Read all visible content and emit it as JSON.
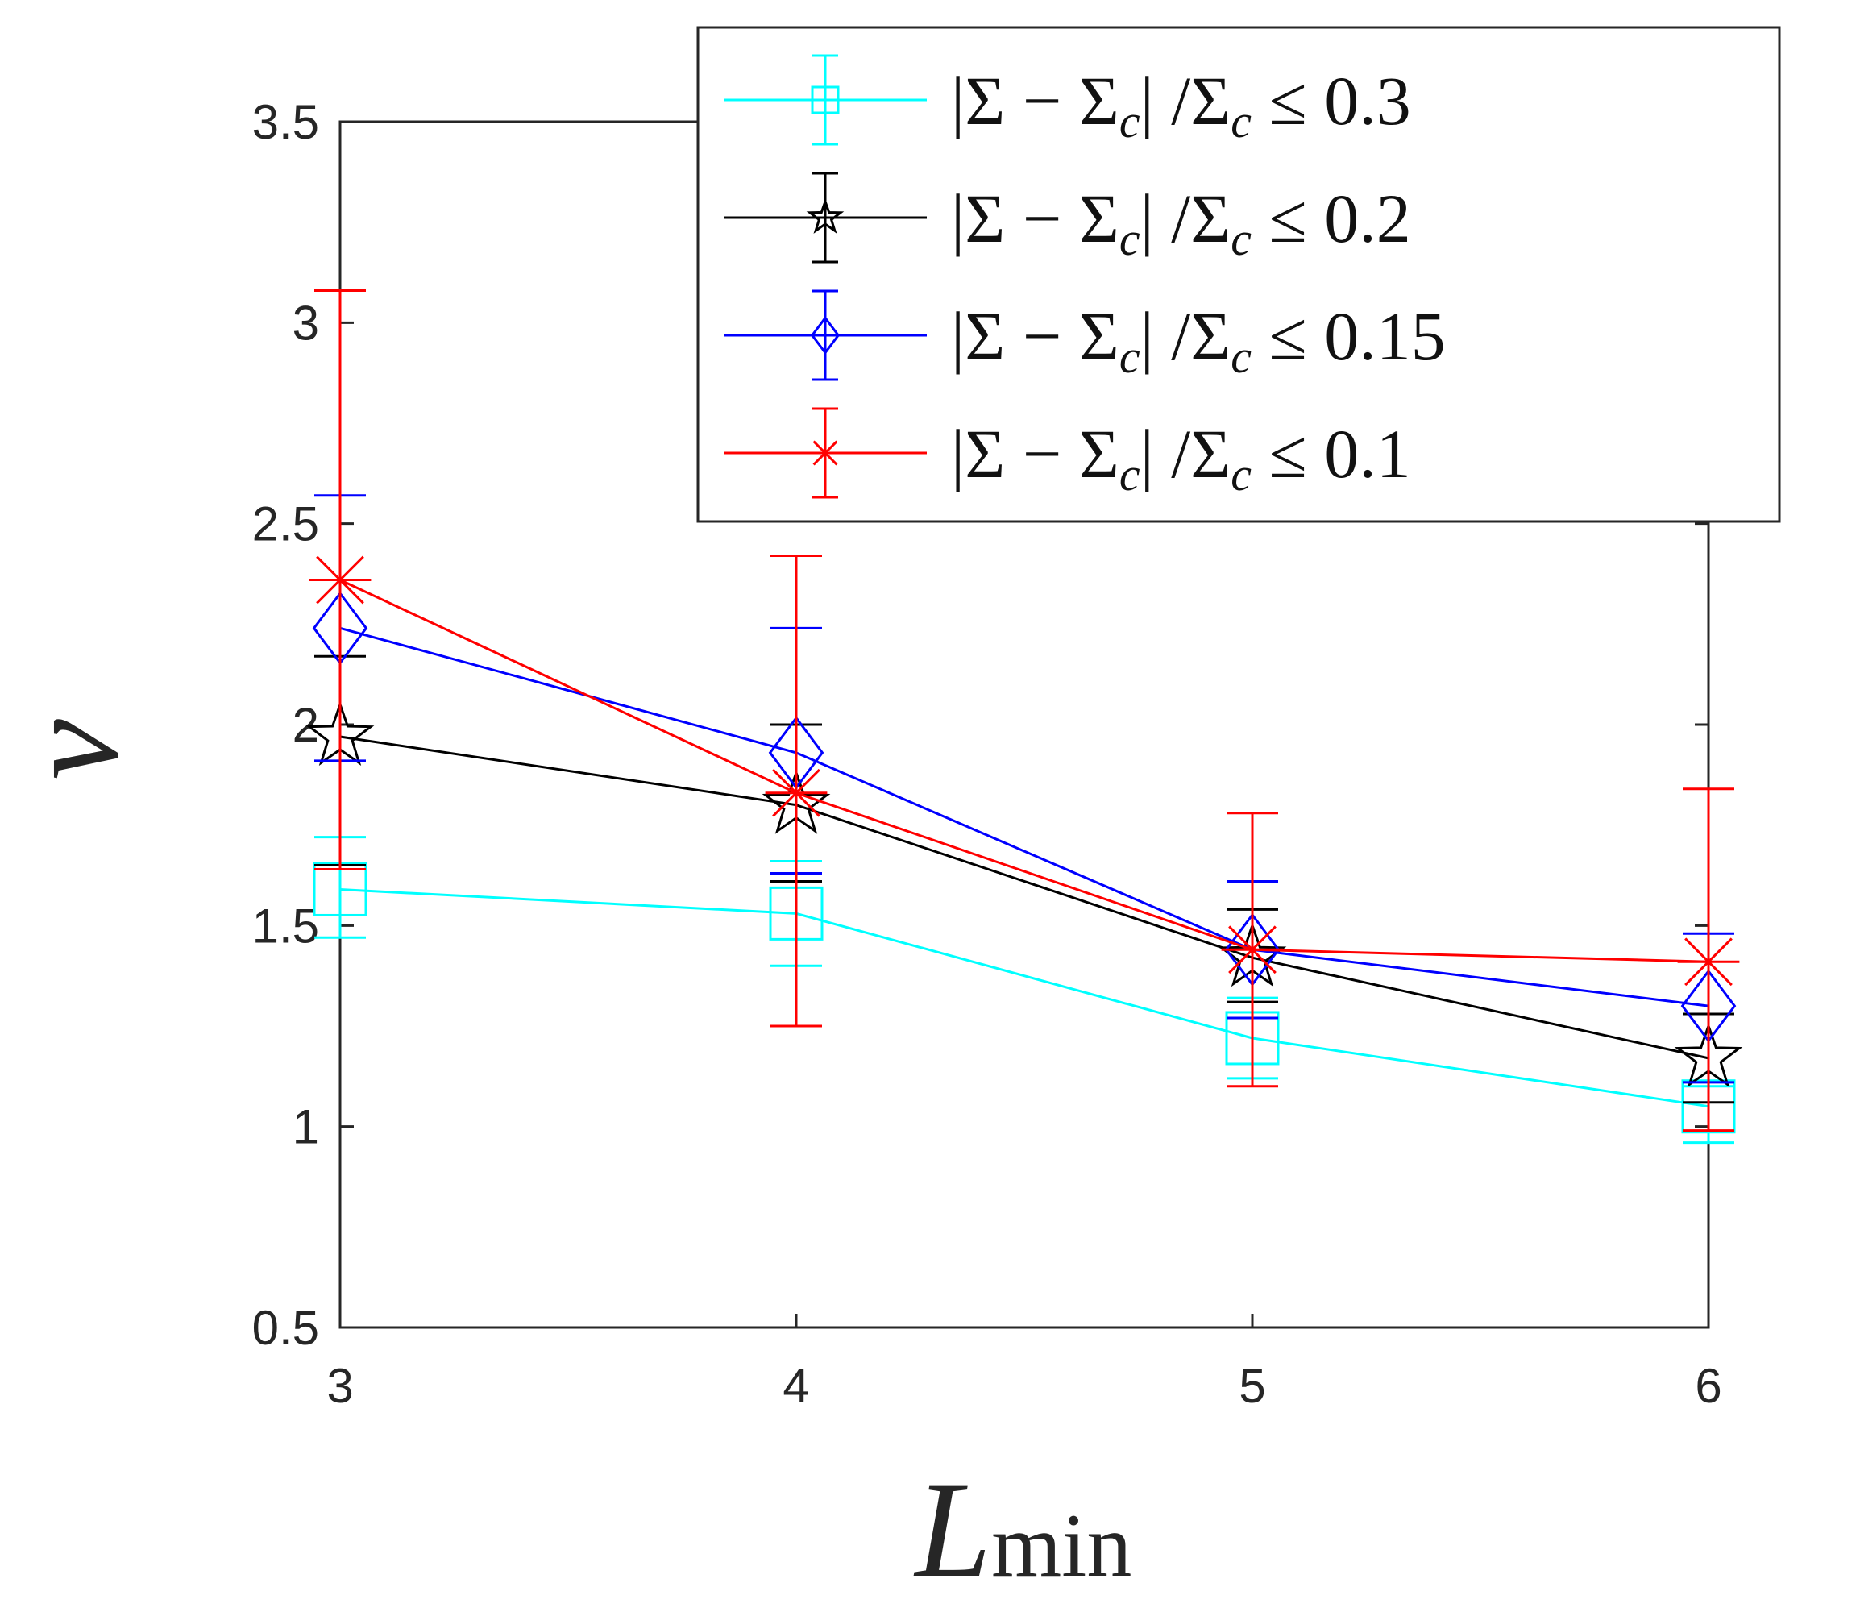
{
  "chart_data": {
    "type": "line",
    "title": "",
    "xlabel_main": "L",
    "xlabel_sub": "min",
    "ylabel": "ν",
    "xlim": [
      3,
      6
    ],
    "ylim": [
      0.5,
      3.5
    ],
    "xticks": [
      3,
      4,
      5,
      6
    ],
    "xtick_labels": [
      "3",
      "4",
      "5",
      "6"
    ],
    "yticks": [
      0.5,
      1,
      1.5,
      2,
      2.5,
      3,
      3.5
    ],
    "ytick_labels": [
      "0.5",
      "1",
      "1.5",
      "2",
      "2.5",
      "3",
      "3.5"
    ],
    "grid": false,
    "legend_position": "top-right",
    "x": [
      3,
      4,
      5,
      6
    ],
    "series": [
      {
        "name": "|Σ − Σc| /Σc ≤ 0.3",
        "label_main": "|Σ − Σ",
        "label_sub": "c",
        "label_mid": "| /Σ",
        "label_tail": " ≤ 0.3",
        "color": "#00FFFF",
        "marker": "square",
        "values": [
          1.59,
          1.53,
          1.22,
          1.05
        ],
        "err_low": [
          1.47,
          1.4,
          1.12,
          0.96
        ],
        "err_high": [
          1.72,
          1.66,
          1.32,
          1.1
        ]
      },
      {
        "name": "|Σ − Σc| /Σc ≤ 0.2",
        "label_main": "|Σ − Σ",
        "label_sub": "c",
        "label_mid": "| /Σ",
        "label_tail": " ≤ 0.2",
        "color": "#000000",
        "marker": "star",
        "values": [
          1.97,
          1.8,
          1.42,
          1.17
        ],
        "err_low": [
          1.65,
          1.61,
          1.31,
          1.06
        ],
        "err_high": [
          2.17,
          2.0,
          1.54,
          1.28
        ]
      },
      {
        "name": "|Σ − Σc| /Σc ≤ 0.15",
        "label_main": "|Σ − Σ",
        "label_sub": "c",
        "label_mid": "| /Σ",
        "label_tail": " ≤ 0.15",
        "color": "#0000FF",
        "marker": "diamond",
        "values": [
          2.24,
          1.93,
          1.44,
          1.3
        ],
        "err_low": [
          1.91,
          1.63,
          1.27,
          1.11
        ],
        "err_high": [
          2.57,
          2.24,
          1.61,
          1.48
        ]
      },
      {
        "name": "|Σ − Σc| /Σc ≤ 0.1",
        "label_main": "|Σ − Σ",
        "label_sub": "c",
        "label_mid": "| /Σ",
        "label_tail": " ≤ 0.1",
        "color": "#FF0000",
        "marker": "asterisk",
        "values": [
          2.36,
          1.83,
          1.44,
          1.41
        ],
        "err_low": [
          1.64,
          1.25,
          1.1,
          0.99
        ],
        "err_high": [
          3.08,
          2.42,
          1.78,
          1.84
        ]
      }
    ]
  }
}
